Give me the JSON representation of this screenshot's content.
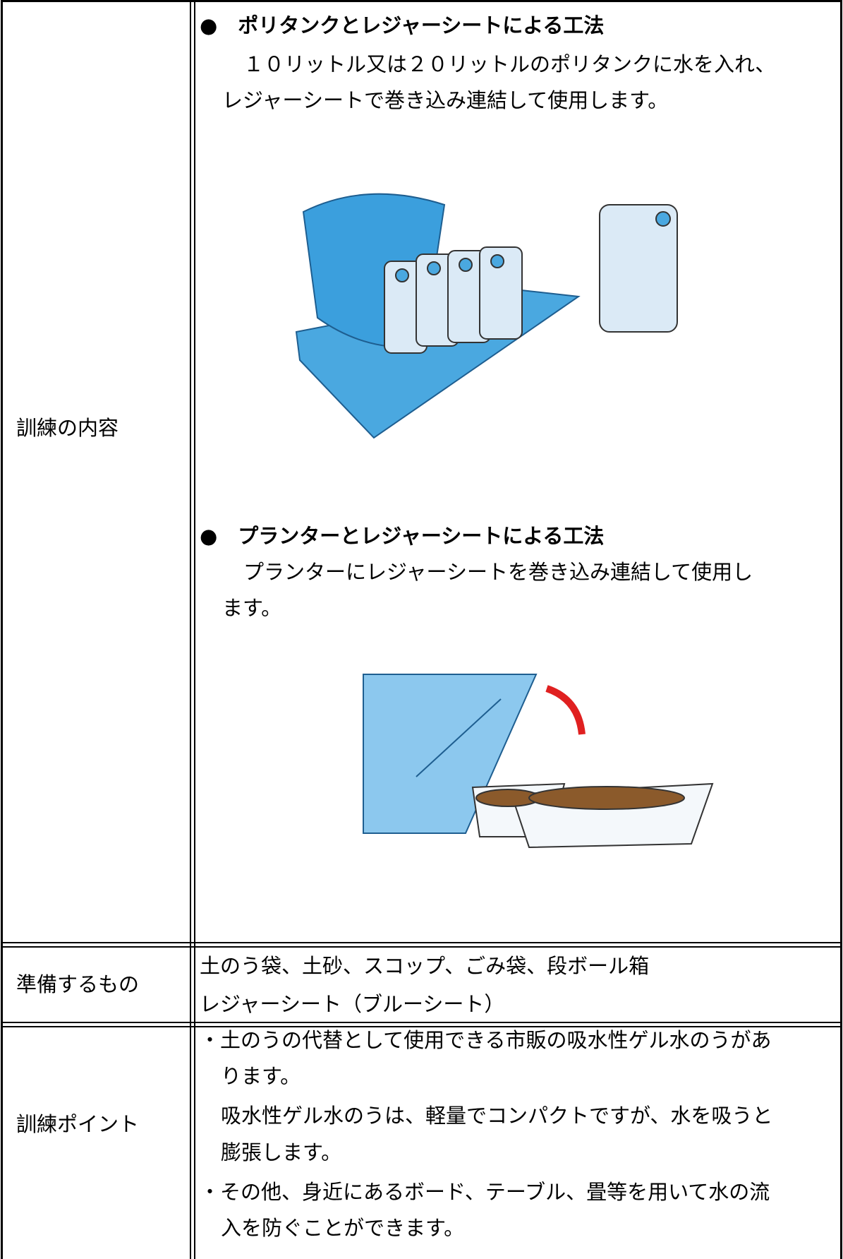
{
  "table": {
    "rows": [
      {
        "label": "訓練の内容",
        "sections": [
          {
            "heading": "●　ポリタンクとレジャーシートによる工法",
            "lines": [
              "１０リットル又は２０リットルのポリタンクに水を入れ、",
              "レジャーシートで巻き込み連結して使用します。"
            ]
          },
          {
            "heading": "●　プランターとレジャーシートによる工法",
            "lines": [
              "プランターにレジャーシートを巻き込み連結して使用し",
              "ます。"
            ]
          }
        ]
      },
      {
        "label": "準備するもの",
        "lines": [
          "土のう袋、土砂、スコップ、ごみ袋、段ボール箱",
          "レジャーシート（ブルーシート）"
        ]
      },
      {
        "label": "訓練ポイント",
        "lines": [
          "・土のうの代替として使用できる市販の吸水性ゲル水のうがあ",
          "ります。",
          "吸水性ゲル水のうは、軽量でコンパクトですが、水を吸うと",
          "膨張します。",
          "・その他、身近にあるボード、テーブル、畳等を用いて水の流",
          "入を防ぐことができます。"
        ]
      }
    ]
  }
}
